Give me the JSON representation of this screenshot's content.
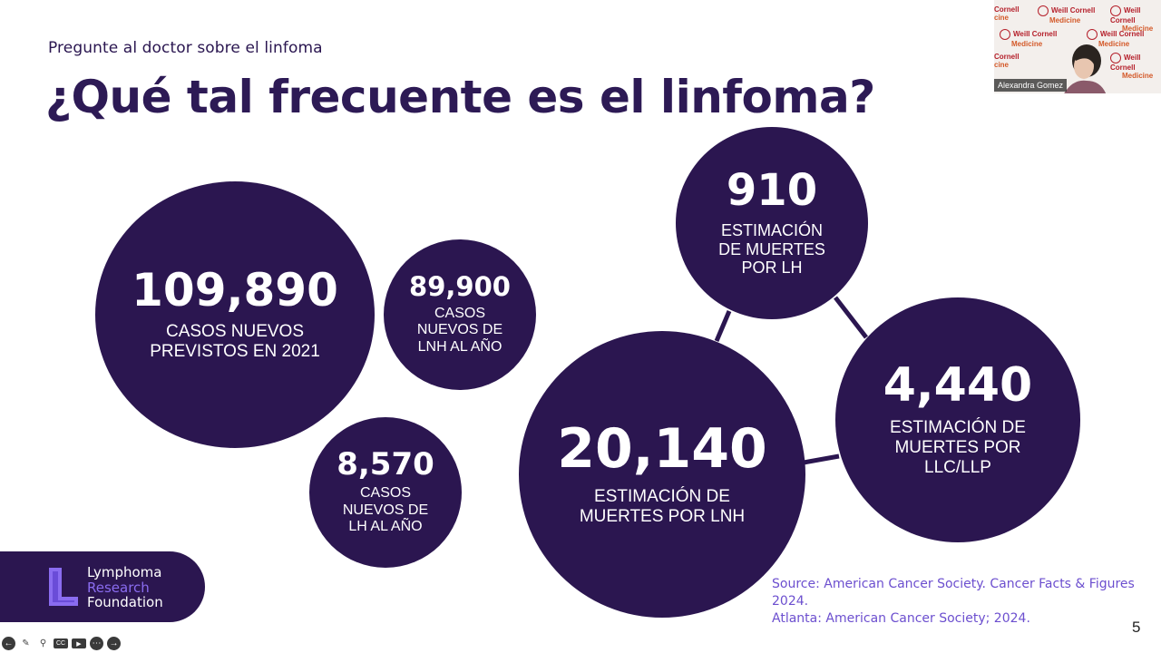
{
  "slide": {
    "subtitle": "Pregunte al doctor sobre el linfoma",
    "title": "¿Qué tal frecuente es el linfoma?",
    "page_number": "5"
  },
  "stats": [
    {
      "value": "109,890",
      "label": "CASOS NUEVOS PREVISTOS EN 2021"
    },
    {
      "value": "89,900",
      "label": "CASOS NUEVOS DE LNH AL AÑO"
    },
    {
      "value": "8,570",
      "label": "CASOS NUEVOS DE LH AL AÑO"
    },
    {
      "value": "910",
      "label": "ESTIMACIÓN DE MUERTES POR LH"
    },
    {
      "value": "20,140",
      "label": "ESTIMACIÓN DE MUERTES POR LNH"
    },
    {
      "value": "4,440",
      "label": "ESTIMACIÓN DE MUERTES POR LLC/LLP"
    }
  ],
  "stat_lines": [
    [
      "CASOS NUEVOS",
      "PREVISTOS EN 2021"
    ],
    [
      "CASOS",
      "NUEVOS DE",
      "LNH AL AÑO"
    ],
    [
      "CASOS",
      "NUEVOS DE",
      "LH AL AÑO"
    ],
    [
      "ESTIMACIÓN",
      "DE MUERTES",
      "POR LH"
    ],
    [
      "ESTIMACIÓN DE",
      "MUERTES POR LNH"
    ],
    [
      "ESTIMACIÓN DE",
      "MUERTES POR",
      "LLC/LLP"
    ]
  ],
  "logo": {
    "line1": "Lymphoma",
    "line2": "Research",
    "line3": "Foundation"
  },
  "source": {
    "line1": "Source: American Cancer Society. Cancer Facts & Figures 2024.",
    "line2": "Atlanta: American Cancer Society; 2024."
  },
  "video": {
    "participant_name": "Alexandra Gomez",
    "watermark_1": "Weill Cornell",
    "watermark_2": "Medicine",
    "watermark_partial_1": "Cornell",
    "watermark_partial_2": "cine"
  },
  "toolbar": {
    "icons": [
      "arrow-left-icon",
      "pen-icon",
      "search-icon",
      "captions-icon",
      "camera-icon",
      "more-icon",
      "arrow-right-icon"
    ],
    "captions_label": "CC"
  },
  "colors": {
    "circle": "#2b1650",
    "title": "#2d1a55",
    "source": "#6c4fcf",
    "logo_accent": "#8a6cf0"
  }
}
